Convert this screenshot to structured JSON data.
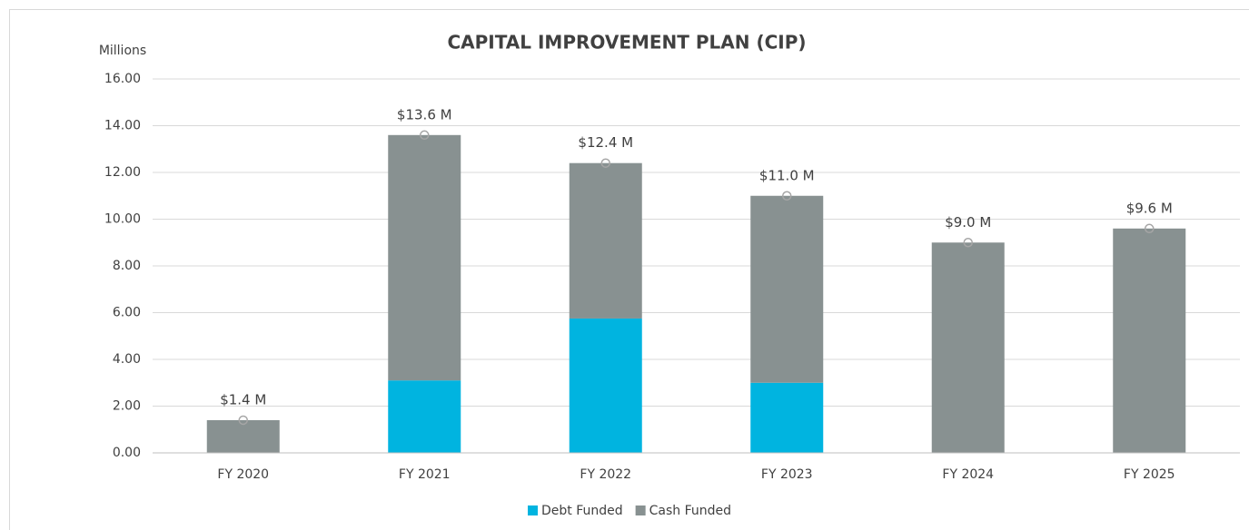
{
  "chart_data": {
    "type": "stacked_bar",
    "title": "CAPITAL IMPROVEMENT PLAN (CIP)",
    "y_axis_label": "Millions",
    "categories": [
      "FY  2020",
      "FY  2021",
      "FY  2022",
      "FY  2023",
      "FY  2024",
      "FY  2025"
    ],
    "series": [
      {
        "name": "Debt Funded",
        "color": "#00b4e0",
        "values": [
          0,
          3.1,
          5.75,
          3.0,
          0,
          0
        ]
      },
      {
        "name": "Cash Funded",
        "color": "#889191",
        "values": [
          1.4,
          10.5,
          6.65,
          8.0,
          9.0,
          9.6
        ]
      }
    ],
    "totals": {
      "values": [
        1.4,
        13.6,
        12.4,
        11.0,
        9.0,
        9.6
      ],
      "value_labels": [
        "$1.4 M",
        "$13.6 M",
        "$12.4 M",
        "$11.0 M",
        "$9.0 M",
        "$9.6 M"
      ],
      "color": "#a6a6a6"
    },
    "ylim": [
      0,
      16
    ],
    "yticks": [
      {
        "value": 0,
        "label": "0.00"
      },
      {
        "value": 2,
        "label": "2.00"
      },
      {
        "value": 4,
        "label": "4.00"
      },
      {
        "value": 6,
        "label": "6.00"
      },
      {
        "value": 8,
        "label": "8.00"
      },
      {
        "value": 10,
        "label": "10.00"
      },
      {
        "value": 12,
        "label": "12.00"
      },
      {
        "value": 14,
        "label": "14.00"
      },
      {
        "value": 16,
        "label": "16.00"
      }
    ],
    "grid": true,
    "legend": "bottom"
  }
}
